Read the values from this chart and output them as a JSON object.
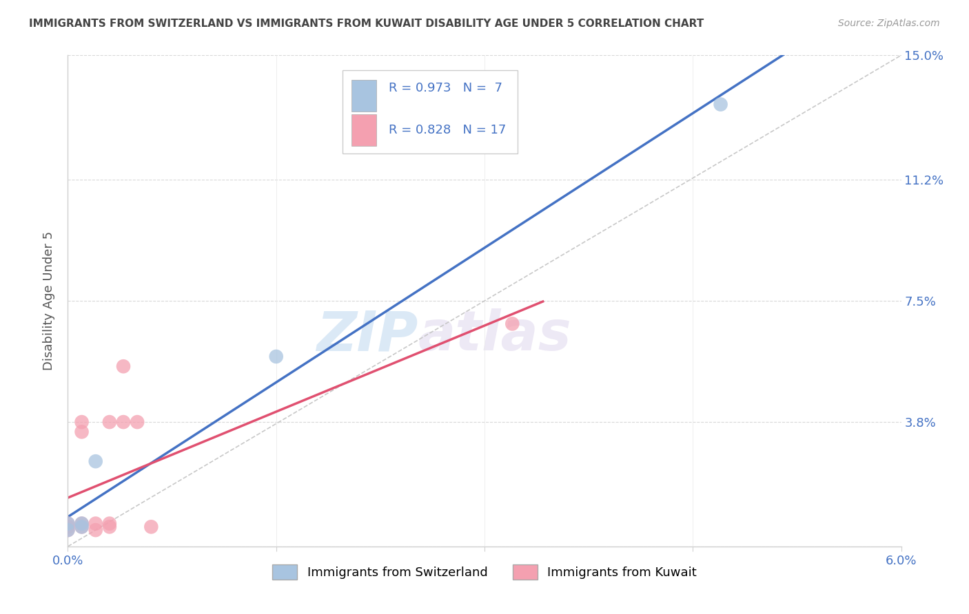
{
  "title": "IMMIGRANTS FROM SWITZERLAND VS IMMIGRANTS FROM KUWAIT DISABILITY AGE UNDER 5 CORRELATION CHART",
  "source": "Source: ZipAtlas.com",
  "ylabel_label": "Disability Age Under 5",
  "xlim": [
    0.0,
    0.06
  ],
  "ylim": [
    0.0,
    0.15
  ],
  "xtick_pos": [
    0.0,
    0.015,
    0.03,
    0.045,
    0.06
  ],
  "xtick_labels": [
    "0.0%",
    "",
    "",
    "",
    "6.0%"
  ],
  "ytick_pos": [
    0.0,
    0.038,
    0.075,
    0.112,
    0.15
  ],
  "ytick_labels": [
    "",
    "3.8%",
    "7.5%",
    "11.2%",
    "15.0%"
  ],
  "swiss_color": "#a8c4e0",
  "kuwait_color": "#f4a0b0",
  "swiss_line_color": "#4472c4",
  "kuwait_line_color": "#e05070",
  "diagonal_color": "#c8c8c8",
  "watermark_zip": "ZIP",
  "watermark_atlas": "atlas",
  "legend_R_swiss": "R = 0.973",
  "legend_N_swiss": "N =  7",
  "legend_R_kuwait": "R = 0.828",
  "legend_N_kuwait": "N = 17",
  "swiss_points": [
    [
      0.0,
      0.005
    ],
    [
      0.0,
      0.007
    ],
    [
      0.001,
      0.006
    ],
    [
      0.001,
      0.007
    ],
    [
      0.002,
      0.026
    ],
    [
      0.015,
      0.058
    ],
    [
      0.047,
      0.135
    ]
  ],
  "kuwait_points": [
    [
      0.0,
      0.005
    ],
    [
      0.0,
      0.006
    ],
    [
      0.0,
      0.007
    ],
    [
      0.001,
      0.006
    ],
    [
      0.001,
      0.007
    ],
    [
      0.001,
      0.035
    ],
    [
      0.001,
      0.038
    ],
    [
      0.002,
      0.005
    ],
    [
      0.002,
      0.007
    ],
    [
      0.003,
      0.006
    ],
    [
      0.003,
      0.007
    ],
    [
      0.003,
      0.038
    ],
    [
      0.004,
      0.038
    ],
    [
      0.004,
      0.055
    ],
    [
      0.005,
      0.038
    ],
    [
      0.006,
      0.006
    ],
    [
      0.032,
      0.068
    ]
  ],
  "legend_swiss_label": "Immigrants from Switzerland",
  "legend_kuwait_label": "Immigrants from Kuwait"
}
